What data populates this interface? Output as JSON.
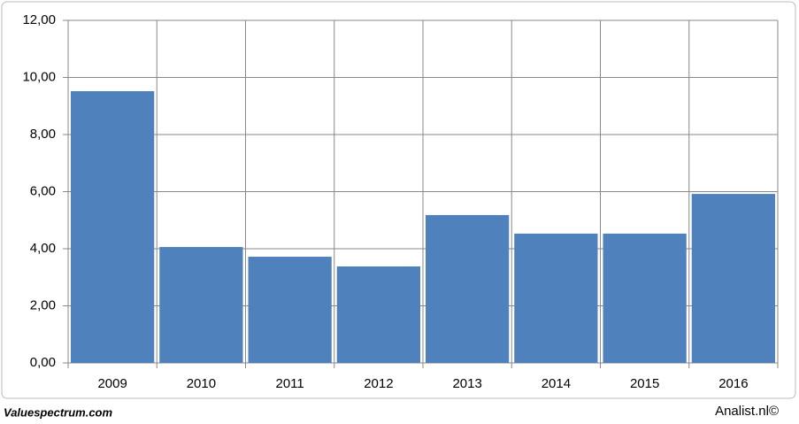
{
  "chart_data": {
    "type": "bar",
    "categories": [
      "2009",
      "2010",
      "2011",
      "2012",
      "2013",
      "2014",
      "2015",
      "2016"
    ],
    "values": [
      9.52,
      4.06,
      3.72,
      3.38,
      5.18,
      4.53,
      4.53,
      5.92
    ],
    "color": "#4f81bd",
    "ylim": [
      0,
      12
    ],
    "yticks": [
      {
        "value": 0,
        "label": "0,00"
      },
      {
        "value": 2,
        "label": "2,00"
      },
      {
        "value": 4,
        "label": "4,00"
      },
      {
        "value": 6,
        "label": "6,00"
      },
      {
        "value": 8,
        "label": "8,00"
      },
      {
        "value": 10,
        "label": "10,00"
      },
      {
        "value": 12,
        "label": "12,00"
      }
    ],
    "grid": true,
    "source_left": "Valuespectrum.com",
    "source_right": "Analist.nl©"
  }
}
